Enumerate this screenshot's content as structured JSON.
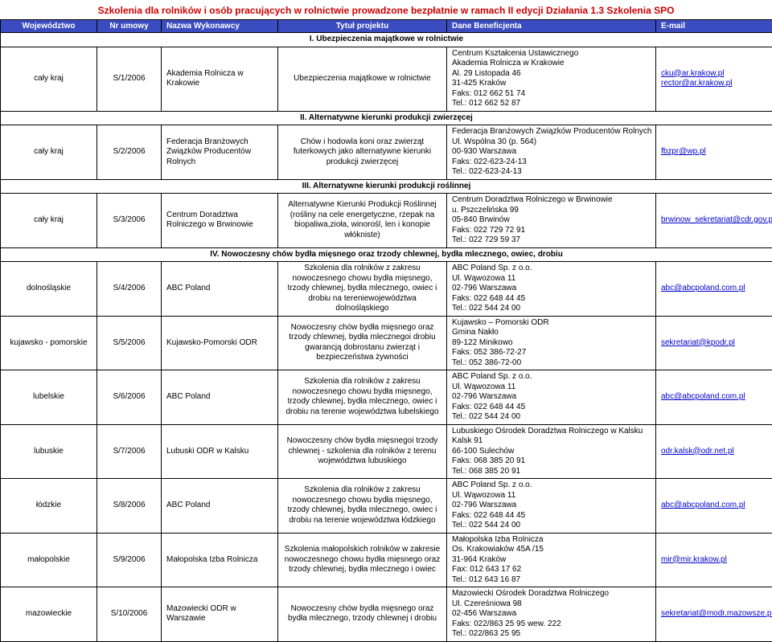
{
  "page_title": "Szkolenia dla rolników i osób pracujących w rolnictwie prowadzone bezpłatnie w ramach II edycji Działania 1.3 Szkolenia SPO",
  "columns": [
    "Województwo",
    "Nr umowy",
    "Nazwa Wykonawcy",
    "Tytuł projektu",
    "Dane Beneficjenta",
    "E-mail"
  ],
  "sections": [
    {
      "heading": "I. Ubezpieczenia majątkowe w rolnictwie",
      "rows": [
        {
          "woj": "cały kraj",
          "nr": "S/1/2006",
          "wyk": "Akademia Rolnicza w Krakowie",
          "tyt": "Ubezpieczenia majątkowe w rolnictwie",
          "dane": "Centrum Kształcenia Ustawicznego\nAkademia Rolnicza w Krakowie\nAl. 29 Listopada 46\n31-425 Kraków\nFaks: 012 662 51 74\nTel.: 012 662 52 87",
          "emails": [
            "cku@ar.krakow.pl",
            "rector@ar.krakow.pl"
          ]
        }
      ]
    },
    {
      "heading": "II. Alternatywne kierunki produkcji zwierzęcej",
      "rows": [
        {
          "woj": "cały kraj",
          "nr": "S/2/2006",
          "wyk": "Federacja Branżowych Związków Producentów Rolnych",
          "tyt": "Chów i hodowla koni oraz zwierząt futerkowych jako alternatywne kierunki produkcji zwierzęcej",
          "dane": "Federacja Branżowych Związków Producentów Rolnych\nUl. Wspólna 30 (p. 564)\n00-930 Warszawa\nFaks: 022-623-24-13\nTel.: 022-623-24-13",
          "emails": [
            "fbzpr@wp.pl"
          ]
        }
      ]
    },
    {
      "heading": "III. Alternatywne kierunki produkcji roślinnej",
      "rows": [
        {
          "woj": "cały kraj",
          "nr": "S/3/2006",
          "wyk": "Centrum Doradztwa Rolniczego w Brwinowie",
          "tyt": "Alternatywne Kierunki Produkcji Roślinnej (rośliny na cele energetyczne, rzepak na biopaliwa,zioła, winorośl, len i konopie włókniste)",
          "dane": "Centrum Doradztwa Rolniczego w Brwinowie\nu. Pszczelińska 99\n05-840 Brwinów\nFaks: 022 729 72 91\nTel.: 022 729 59 37",
          "emails": [
            "brwinow_sekretariat@cdr.gov.pl"
          ]
        }
      ]
    },
    {
      "heading": "IV. Nowoczesny chów bydła mięsnego oraz trzody chlewnej, bydła mlecznego, owiec, drobiu",
      "rows": [
        {
          "woj": "dolnośląskie",
          "nr": "S/4/2006",
          "wyk": "ABC Poland",
          "tyt": "Szkolenia dla rolników z zakresu nowoczesnego chowu bydła mięsnego, trzody chlewnej, bydła mlecznego, owiec i drobiu na tereniewojewództwa dolnośląskiego",
          "dane": "ABC Poland Sp. z o.o.\nUl. Wąwozowa 11\n02-796 Warszawa\nFaks: 022 648 44 45\nTel.: 022 544 24 00",
          "emails": [
            "abc@abcpoland.com.pl"
          ]
        },
        {
          "woj": "kujawsko - pomorskie",
          "nr": "S/5/2006",
          "wyk": "Kujawsko-Pomorski ODR",
          "tyt": "Nowoczesny chów bydła mięsnego oraz trzody chlewnej, bydła mlecznegoi drobiu gwarancją dobrostanu zwierząt i bezpieczeństwa żywności",
          "dane": "Kujawsko – Pomorski ODR\nGmina Nakło\n89-122 Minikowo\nFaks: 052 386-72-27\nTel.:  052 386-72-00",
          "emails": [
            "sekretariat@kpodr.pl"
          ]
        },
        {
          "woj": "lubelskie",
          "nr": "S/6/2006",
          "wyk": "ABC Poland",
          "tyt": "Szkolenia dla rolników z zakresu nowoczesnego chowu bydła mięsnego, trzody chlewnej, bydła mlecznego, owiec i drobiu na terenie województwa lubelskiego",
          "dane": "ABC Poland Sp. z o.o.\nUl. Wąwozowa 11\n02-796 Warszawa\nFaks: 022 648 44 45\nTel.: 022 544 24 00",
          "emails": [
            "abc@abcpoland.com.pl"
          ]
        },
        {
          "woj": "lubuskie",
          "nr": "S/7/2006",
          "wyk": "Lubuski ODR w Kalsku",
          "tyt": "Nowoczesny chów bydła mięsnegoi trzody chlewnej - szkolenia dla rolników z terenu województwa lubuskiego",
          "dane": "Lubuskiego Ośrodek Doradztwa Rolniczego w Kalsku\nKalsk 91\n66-100 Sulechów\nFaks: 068 385 20 91\nTel.: 068 385 20 91",
          "emails": [
            "odr.kalsk@odr.net.pl"
          ]
        },
        {
          "woj": "łódzkie",
          "nr": "S/8/2006",
          "wyk": "ABC Poland",
          "tyt": "Szkolenia dla rolników z zakresu nowoczesnego chowu bydła mięsnego, trzody chlewnej, bydła mlecznego, owiec i drobiu na terenie województwa łódzkiego",
          "dane": "ABC Poland Sp. z o.o.\nUl. Wąwozowa 11\n02-796 Warszawa\nFaks: 022 648 44 45\nTel.: 022 544 24 00",
          "emails": [
            "abc@abcpoland.com.pl"
          ]
        },
        {
          "woj": "małopolskie",
          "nr": "S/9/2006",
          "wyk": "Małopolska Izba Rolnicza",
          "tyt": "Szkolenia małopolskich rolników w zakresie nowoczesnego chowu bydła mięsnego oraz trzody chlewnej, bydła mlecznego i owiec",
          "dane": "Małopolska Izba Rolnicza\nOs. Krakowiaków 45A /15\n31-964 Kraków\nFax: 012 643 17 62\nTel.: 012 643 16 87",
          "emails": [
            "mir@mir.krakow.pl"
          ]
        },
        {
          "woj": "mazowieckie",
          "nr": "S/10/2006",
          "wyk": "Mazowiecki ODR w Warszawie",
          "tyt": "Nowoczesny chów bydła mięsnego oraz bydła mlecznego, trzody chlewnej i drobiu",
          "dane": "Mazowiecki Ośrodek Doradztwa Rolniczego\nUl. Czereśniowa 98\n02-456 Warszawa\nFaks: 022/863 25 95 wew. 222\nTel.: 022/863 25 95",
          "emails": [
            "sekretariat@modr.mazowsze.pl"
          ]
        }
      ]
    }
  ]
}
